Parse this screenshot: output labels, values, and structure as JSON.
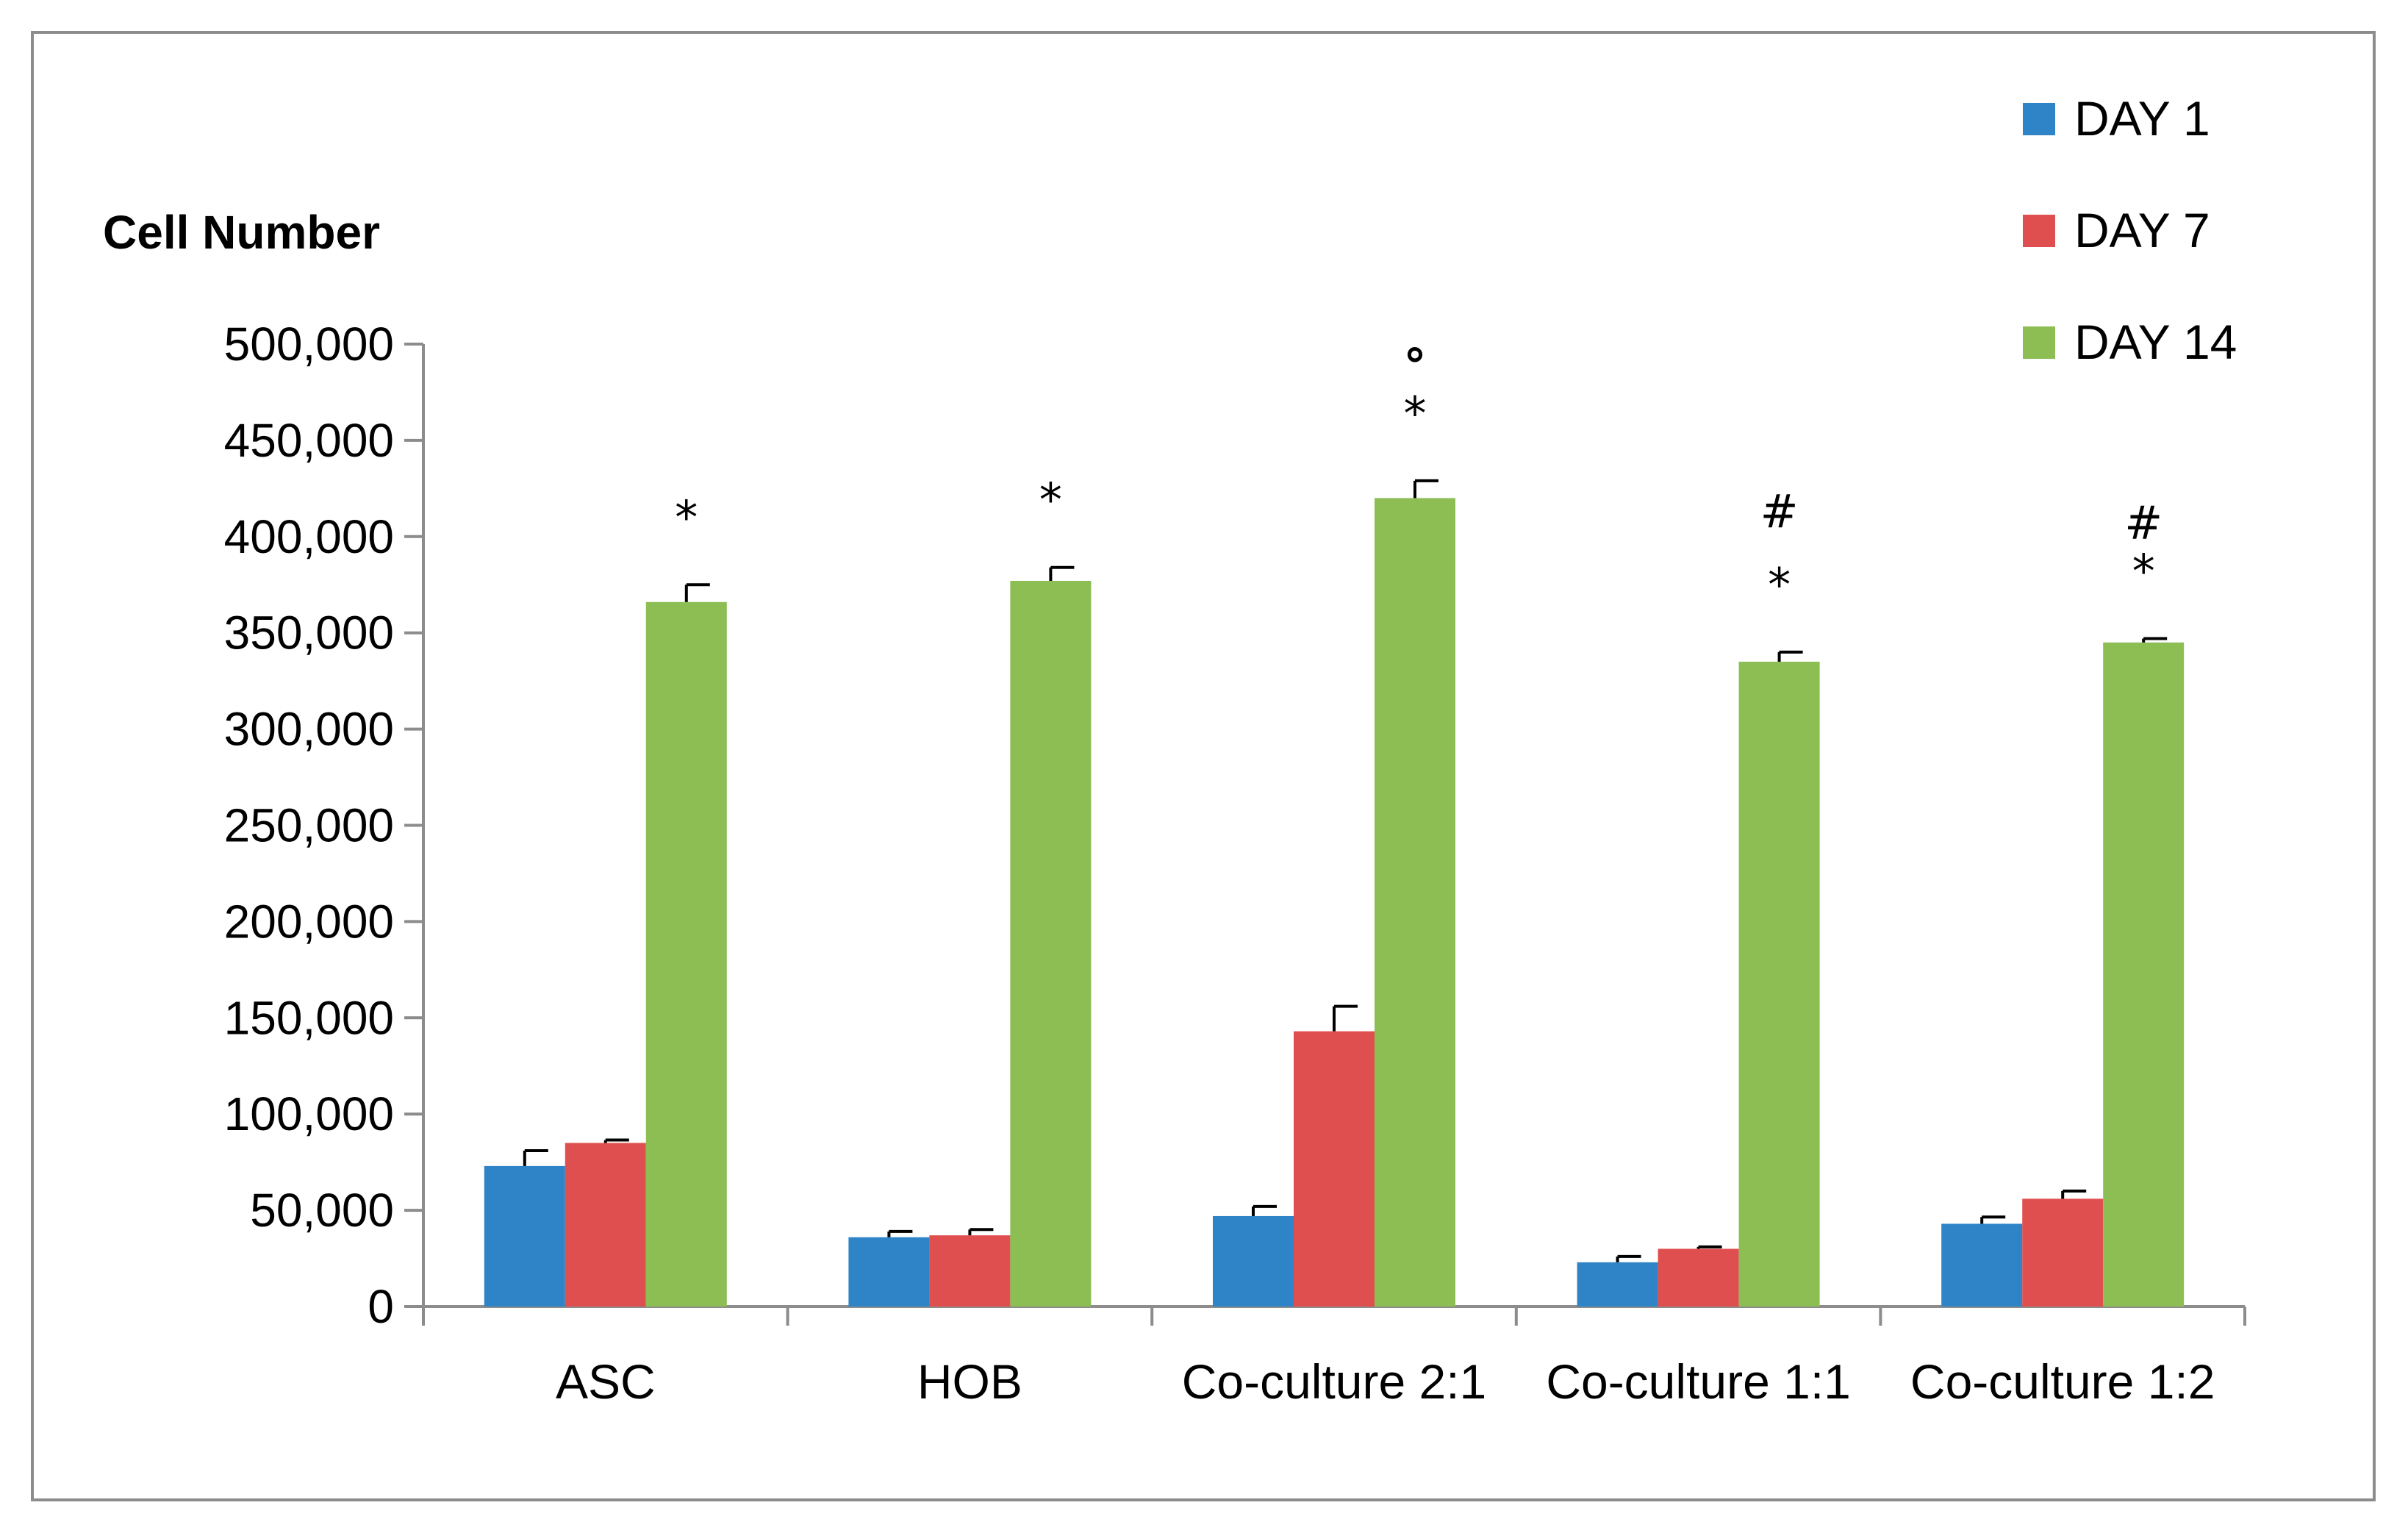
{
  "chart_data": {
    "type": "bar",
    "title": "",
    "xlabel": "",
    "ylabel": "Cell Number",
    "ylim": [
      0,
      500000
    ],
    "yticks": [
      "0",
      "50,000",
      "100,000",
      "150,000",
      "200,000",
      "250,000",
      "300,000",
      "350,000",
      "400,000",
      "450,000",
      "500,000"
    ],
    "categories": [
      "ASC",
      "HOB",
      "Co-culture 2:1",
      "Co-culture 1:1",
      "Co-culture 1:2"
    ],
    "series": [
      {
        "name": "DAY 1",
        "color": "#2e84c6",
        "values": [
          73000,
          36000,
          47000,
          23000,
          43000
        ],
        "errors": [
          8000,
          3000,
          5000,
          3000,
          3500
        ]
      },
      {
        "name": "DAY 7",
        "color": "#e04f4f",
        "values": [
          85000,
          37000,
          143000,
          30000,
          56000
        ],
        "errors": [
          1500,
          3000,
          13000,
          1000,
          4000
        ]
      },
      {
        "name": "DAY 14",
        "color": "#8cbe54",
        "values": [
          366000,
          377000,
          420000,
          335000,
          345000
        ],
        "errors": [
          9000,
          7000,
          9000,
          5000,
          2000
        ]
      }
    ],
    "annotations": [
      {
        "category": "ASC",
        "series": "DAY 14",
        "marks": [
          "*"
        ]
      },
      {
        "category": "HOB",
        "series": "DAY 14",
        "marks": [
          "*"
        ]
      },
      {
        "category": "Co-culture 2:1",
        "series": "DAY 14",
        "marks": [
          "*",
          "°"
        ]
      },
      {
        "category": "Co-culture 1:1",
        "series": "DAY 14",
        "marks": [
          "*",
          "#"
        ]
      },
      {
        "category": "Co-culture 1:2",
        "series": "DAY 14",
        "marks": [
          "*",
          "#"
        ]
      }
    ],
    "legend": "top-right",
    "grid": false
  }
}
